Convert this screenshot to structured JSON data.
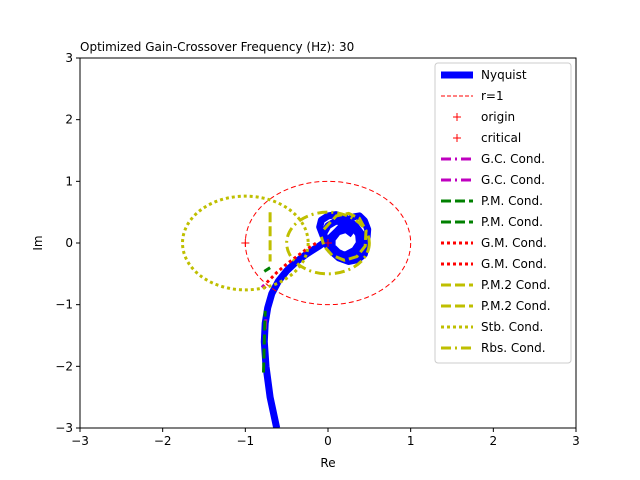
{
  "chart_data": {
    "type": "line",
    "title": "Optimized Gain-Crossover Frequency (Hz): 30",
    "xlabel": "Re",
    "ylabel": "Im",
    "xlim": [
      -3,
      3
    ],
    "ylim": [
      -3,
      3
    ],
    "xticks": [
      -3,
      -2,
      -1,
      0,
      1,
      2,
      3
    ],
    "yticks": [
      -3,
      -2,
      -1,
      0,
      1,
      2,
      3
    ],
    "xtick_labels": [
      "−3",
      "−2",
      "−1",
      "0",
      "1",
      "2",
      "3"
    ],
    "ytick_labels": [
      "−3",
      "−2",
      "−1",
      "0",
      "1",
      "2",
      "3"
    ],
    "grid": false,
    "legend_position": "top-right",
    "series": [
      {
        "name": "Nyquist",
        "color": "#0000ff",
        "style": "solid-thick",
        "x": [
          -0.62,
          -0.7,
          -0.75,
          -0.77,
          -0.76,
          -0.73,
          -0.68,
          -0.6,
          -0.5,
          -0.38,
          -0.25,
          -0.12,
          0.0,
          0.1,
          0.2,
          0.3,
          0.38,
          0.44,
          0.48,
          0.47,
          0.42,
          0.33,
          0.23,
          0.12,
          0.02,
          -0.06,
          -0.1,
          -0.08,
          0.0,
          0.1,
          0.22,
          0.33,
          0.42,
          0.46,
          0.44,
          0.36,
          0.25,
          0.13,
          0.03,
          -0.04,
          -0.05,
          0.0,
          0.09,
          0.2,
          0.3,
          0.37,
          0.38,
          0.32,
          0.22,
          0.12,
          0.05,
          0.05,
          0.12,
          0.22,
          0.3
        ],
        "y": [
          -3.0,
          -2.5,
          -2.0,
          -1.6,
          -1.3,
          -1.05,
          -0.82,
          -0.62,
          -0.45,
          -0.3,
          -0.17,
          -0.06,
          0.05,
          0.18,
          0.32,
          0.42,
          0.44,
          0.36,
          0.22,
          0.05,
          -0.1,
          -0.2,
          -0.22,
          -0.15,
          -0.02,
          0.12,
          0.26,
          0.37,
          0.44,
          0.46,
          0.4,
          0.28,
          0.12,
          -0.04,
          -0.18,
          -0.27,
          -0.3,
          -0.24,
          -0.12,
          0.02,
          0.16,
          0.28,
          0.35,
          0.35,
          0.27,
          0.14,
          0.0,
          -0.12,
          -0.19,
          -0.18,
          -0.08,
          0.06,
          0.18,
          0.22,
          0.14
        ]
      },
      {
        "name": "r=1",
        "color": "#ff0000",
        "style": "dashed",
        "shape": "circle",
        "center": [
          0,
          0
        ],
        "radius": 1
      },
      {
        "name": "origin",
        "color": "#ff0000",
        "marker": "+",
        "x": [
          0
        ],
        "y": [
          0
        ]
      },
      {
        "name": "critical",
        "color": "#ff0000",
        "marker": "+",
        "x": [
          -1
        ],
        "y": [
          0
        ]
      },
      {
        "name": "G.C. Cond.",
        "color": "#bf00bf",
        "style": "dashdot",
        "x": [
          -0.76,
          -0.75
        ],
        "y": [
          -1.4,
          -1.2
        ]
      },
      {
        "name": "G.C. Cond.",
        "color": "#bf00bf",
        "style": "dashdot",
        "x": [
          -0.8,
          -0.77
        ],
        "y": [
          -0.72,
          -0.68
        ]
      },
      {
        "name": "P.M. Cond.",
        "color": "#008000",
        "style": "dashed",
        "x": [
          -0.78,
          -0.77,
          -0.76
        ],
        "y": [
          -2.1,
          -1.6,
          -1.1
        ]
      },
      {
        "name": "P.M. Cond.",
        "color": "#008000",
        "style": "dashed",
        "x": [
          -0.77,
          -0.7
        ],
        "y": [
          -0.46,
          -0.4
        ]
      },
      {
        "name": "G.M. Cond.",
        "color": "#ff0000",
        "style": "dotted",
        "x": [
          -0.74,
          -0.62,
          -0.5,
          -0.38,
          -0.26,
          -0.14
        ],
        "y": [
          -0.64,
          -0.48,
          -0.34,
          -0.22,
          -0.1,
          0.0
        ]
      },
      {
        "name": "G.M. Cond.",
        "color": "#ff0000",
        "style": "dotted",
        "x": [
          -0.78,
          -0.74
        ],
        "y": [
          -0.74,
          -0.68
        ]
      },
      {
        "name": "P.M.2 Cond.",
        "color": "#bfbf00",
        "style": "dashed",
        "x": [
          -0.7,
          -0.7
        ],
        "y": [
          0.5,
          -0.3
        ]
      },
      {
        "name": "P.M.2 Cond.",
        "color": "#bfbf00",
        "style": "dashed",
        "x": [
          -0.05,
          0.1,
          0.25,
          0.38,
          0.46,
          0.45,
          0.35,
          0.2,
          0.05,
          -0.05,
          -0.08
        ],
        "y": [
          0.22,
          0.44,
          0.48,
          0.4,
          0.2,
          -0.05,
          -0.22,
          -0.28,
          -0.2,
          -0.05,
          0.1
        ]
      },
      {
        "name": "Stb. Cond.",
        "color": "#bfbf00",
        "style": "dotted",
        "shape": "ellipse",
        "center": [
          -1.0,
          0.0
        ],
        "radius": [
          0.76,
          0.76
        ]
      },
      {
        "name": "Rbs. Cond.",
        "color": "#bfbf00",
        "style": "dashdot",
        "shape": "circle",
        "center": [
          0.0,
          0.0
        ],
        "radius": 0.5
      }
    ],
    "legend": [
      {
        "label": "Nyquist",
        "color": "#0000ff",
        "style": "thick"
      },
      {
        "label": "r=1",
        "color": "#ff0000",
        "style": "dashed-thin"
      },
      {
        "label": "origin",
        "color": "#ff0000",
        "style": "marker-plus"
      },
      {
        "label": "critical",
        "color": "#ff0000",
        "style": "marker-plus"
      },
      {
        "label": "G.C. Cond.",
        "color": "#bf00bf",
        "style": "dashdot"
      },
      {
        "label": "G.C. Cond.",
        "color": "#bf00bf",
        "style": "dashdot"
      },
      {
        "label": "P.M. Cond.",
        "color": "#008000",
        "style": "dashed"
      },
      {
        "label": "P.M. Cond.",
        "color": "#008000",
        "style": "dashed"
      },
      {
        "label": "G.M. Cond.",
        "color": "#ff0000",
        "style": "dotted"
      },
      {
        "label": "G.M. Cond.",
        "color": "#ff0000",
        "style": "dotted"
      },
      {
        "label": "P.M.2 Cond.",
        "color": "#bfbf00",
        "style": "dashed"
      },
      {
        "label": "P.M.2 Cond.",
        "color": "#bfbf00",
        "style": "dashed"
      },
      {
        "label": "Stb. Cond.",
        "color": "#bfbf00",
        "style": "dotted"
      },
      {
        "label": "Rbs. Cond.",
        "color": "#bfbf00",
        "style": "dashdot"
      }
    ]
  }
}
